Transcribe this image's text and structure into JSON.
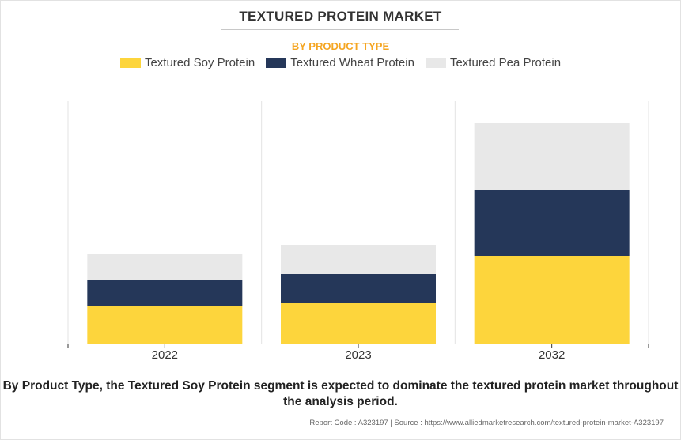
{
  "title": "TEXTURED PROTEIN MARKET",
  "subtitle": "BY PRODUCT TYPE",
  "footnote": "By Product Type, the Textured Soy Protein segment is expected to dominate the textured protein market throughout the analysis period.",
  "source": "Report Code : A323197  |  Source : https://www.alliedmarketresearch.com/textured-protein-market-A323197",
  "colors": {
    "soy": "#fdd53c",
    "wheat": "#253759",
    "pea": "#e8e8e8"
  },
  "chart_data": {
    "type": "bar",
    "stacked": true,
    "categories": [
      "2022",
      "2023",
      "2032"
    ],
    "series": [
      {
        "name": "Textured Soy Protein",
        "values": [
          47,
          51,
          111
        ]
      },
      {
        "name": "Textured Wheat Protein",
        "values": [
          34,
          37,
          83
        ]
      },
      {
        "name": "Textured Pea Protein",
        "values": [
          33,
          37,
          85
        ]
      }
    ],
    "ylim": [
      0,
      307
    ],
    "grid": "vertical separators",
    "legend": "top-center",
    "xlabel": "",
    "ylabel": ""
  }
}
